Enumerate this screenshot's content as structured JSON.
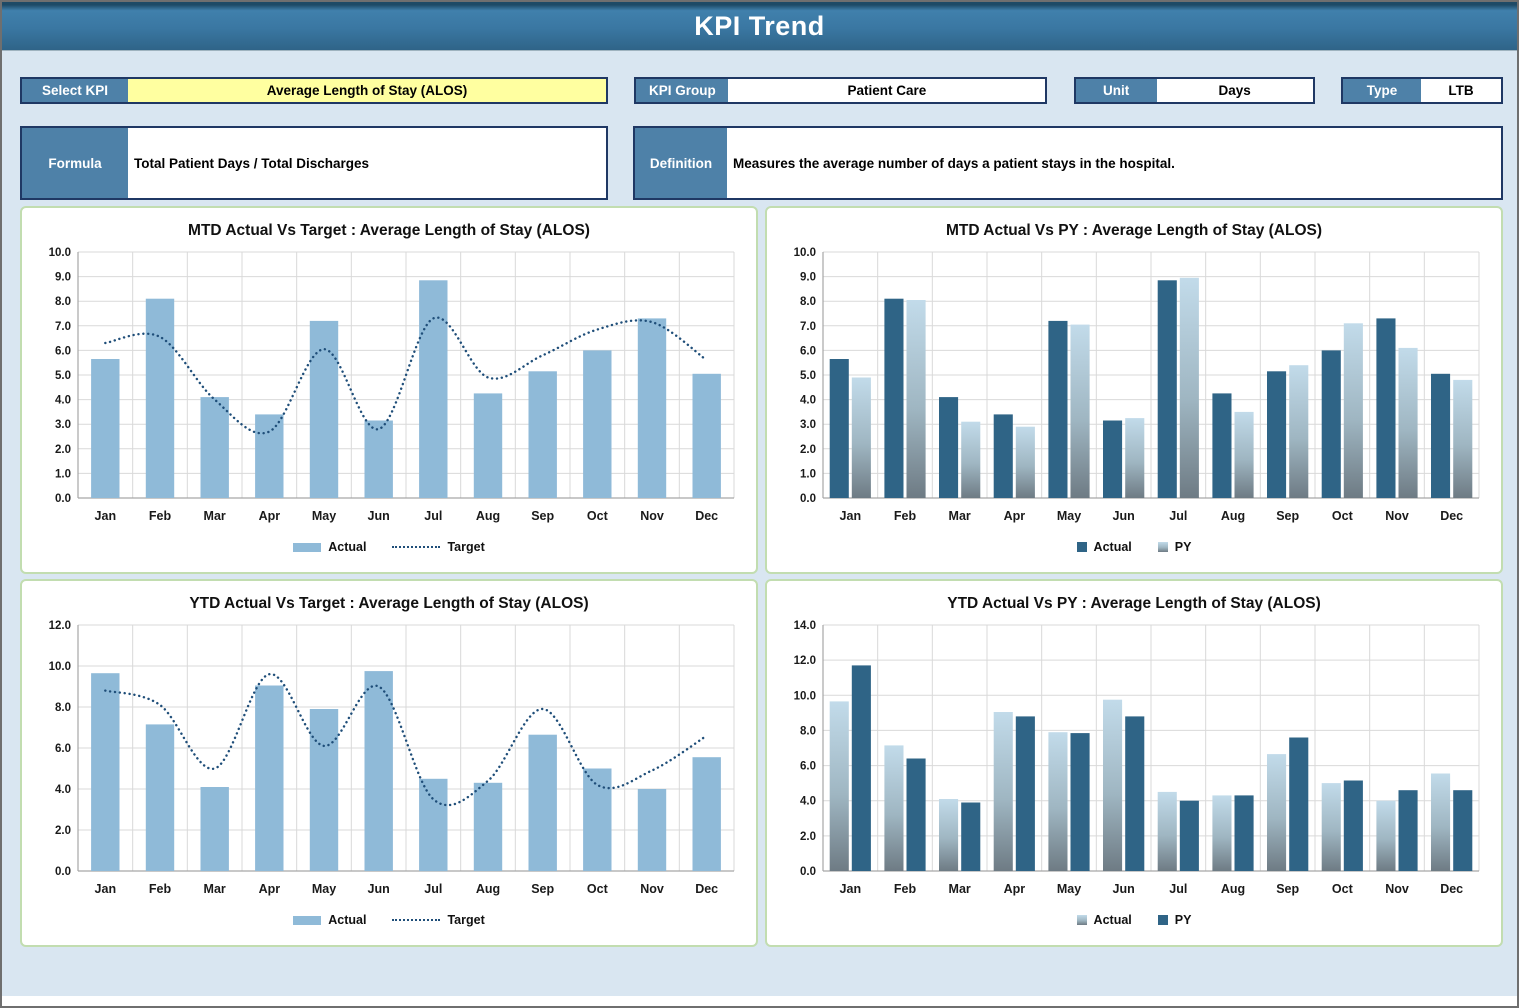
{
  "header": {
    "title": "KPI Trend"
  },
  "controls": {
    "select_kpi": {
      "label": "Select KPI",
      "value": "Average Length of Stay (ALOS)"
    },
    "kpi_group": {
      "label": "KPI Group",
      "value": "Patient Care"
    },
    "unit": {
      "label": "Unit",
      "value": "Days"
    },
    "type": {
      "label": "Type",
      "value": "LTB"
    },
    "formula": {
      "label": "Formula",
      "value": "Total Patient Days / Total Discharges"
    },
    "definition": {
      "label": "Definition",
      "value": "Measures the average number of days a patient stays in the hospital."
    }
  },
  "colors": {
    "background": "#d9e6f1",
    "header_blue": "#3a77a2",
    "label_blue": "#4e81a8",
    "field_yellow": "#ffffa0",
    "box_border_navy": "#1f3864",
    "panel_border_green": "#c2ddb0",
    "bar_light": "#8fbad8",
    "bar_dark": "#2f6486",
    "gradient_top": "#c2dbea",
    "gradient_mid": "#9fb6c2",
    "gradient_bottom": "#6e7b84",
    "target_line": "#1f4e79",
    "gridline": "#d9d9d9",
    "axis": "#a6a6a6",
    "tick_text": "#1a1a1a"
  },
  "chart_data": [
    {
      "type": "bar",
      "title": "MTD Actual Vs Target : Average Length of Stay (ALOS)",
      "categories": [
        "Jan",
        "Feb",
        "Mar",
        "Apr",
        "May",
        "Jun",
        "Jul",
        "Aug",
        "Sep",
        "Oct",
        "Nov",
        "Dec"
      ],
      "series": [
        {
          "name": "Actual",
          "kind": "bar",
          "style": "light",
          "values": [
            5.65,
            8.1,
            4.1,
            3.4,
            7.2,
            3.15,
            8.85,
            4.25,
            5.15,
            6.0,
            7.3,
            5.05
          ]
        },
        {
          "name": "Target",
          "kind": "line",
          "style": "dotted",
          "values": [
            6.3,
            6.55,
            4.0,
            2.7,
            6.05,
            2.8,
            7.3,
            4.9,
            5.8,
            6.85,
            7.15,
            5.6
          ]
        }
      ],
      "ylim": [
        0,
        10
      ],
      "ytick": 1,
      "grid": true,
      "legend_position": "bottom"
    },
    {
      "type": "bar",
      "title": "MTD Actual Vs PY : Average Length of Stay (ALOS)",
      "categories": [
        "Jan",
        "Feb",
        "Mar",
        "Apr",
        "May",
        "Jun",
        "Jul",
        "Aug",
        "Sep",
        "Oct",
        "Nov",
        "Dec"
      ],
      "series": [
        {
          "name": "Actual",
          "kind": "bar",
          "style": "dark",
          "values": [
            5.65,
            8.1,
            4.1,
            3.4,
            7.2,
            3.15,
            8.85,
            4.25,
            5.15,
            6.0,
            7.3,
            5.05
          ]
        },
        {
          "name": "PY",
          "kind": "bar",
          "style": "gradient",
          "values": [
            4.9,
            8.05,
            3.1,
            2.9,
            7.05,
            3.25,
            8.95,
            3.5,
            5.4,
            7.1,
            6.1,
            4.8
          ]
        }
      ],
      "ylim": [
        0,
        10
      ],
      "ytick": 1,
      "grid": true,
      "legend_position": "bottom"
    },
    {
      "type": "bar",
      "title": "YTD Actual Vs Target : Average Length of Stay (ALOS)",
      "categories": [
        "Jan",
        "Feb",
        "Mar",
        "Apr",
        "May",
        "Jun",
        "Jul",
        "Aug",
        "Sep",
        "Oct",
        "Nov",
        "Dec"
      ],
      "series": [
        {
          "name": "Actual",
          "kind": "bar",
          "style": "light",
          "values": [
            9.65,
            7.15,
            4.1,
            9.05,
            7.9,
            9.75,
            4.5,
            4.3,
            6.65,
            5.0,
            4.0,
            5.55
          ]
        },
        {
          "name": "Target",
          "kind": "line",
          "style": "dotted",
          "values": [
            8.8,
            8.1,
            5.0,
            9.6,
            6.1,
            9.0,
            3.5,
            4.4,
            7.9,
            4.2,
            4.9,
            6.6
          ]
        }
      ],
      "ylim": [
        0,
        12
      ],
      "ytick": 2,
      "grid": true,
      "legend_position": "bottom"
    },
    {
      "type": "bar",
      "title": "YTD Actual Vs PY : Average Length of Stay (ALOS)",
      "categories": [
        "Jan",
        "Feb",
        "Mar",
        "Apr",
        "May",
        "Jun",
        "Jul",
        "Aug",
        "Sep",
        "Oct",
        "Nov",
        "Dec"
      ],
      "series": [
        {
          "name": "Actual",
          "kind": "bar",
          "style": "gradient",
          "values": [
            9.65,
            7.15,
            4.1,
            9.05,
            7.9,
            9.75,
            4.5,
            4.3,
            6.65,
            5.0,
            4.0,
            5.55
          ]
        },
        {
          "name": "PY",
          "kind": "bar",
          "style": "dark",
          "values": [
            11.7,
            6.4,
            3.9,
            8.8,
            7.85,
            8.8,
            4.0,
            4.3,
            7.6,
            5.15,
            4.6,
            4.6
          ]
        }
      ],
      "ylim": [
        0,
        14
      ],
      "ytick": 2,
      "grid": true,
      "legend_position": "bottom"
    }
  ]
}
